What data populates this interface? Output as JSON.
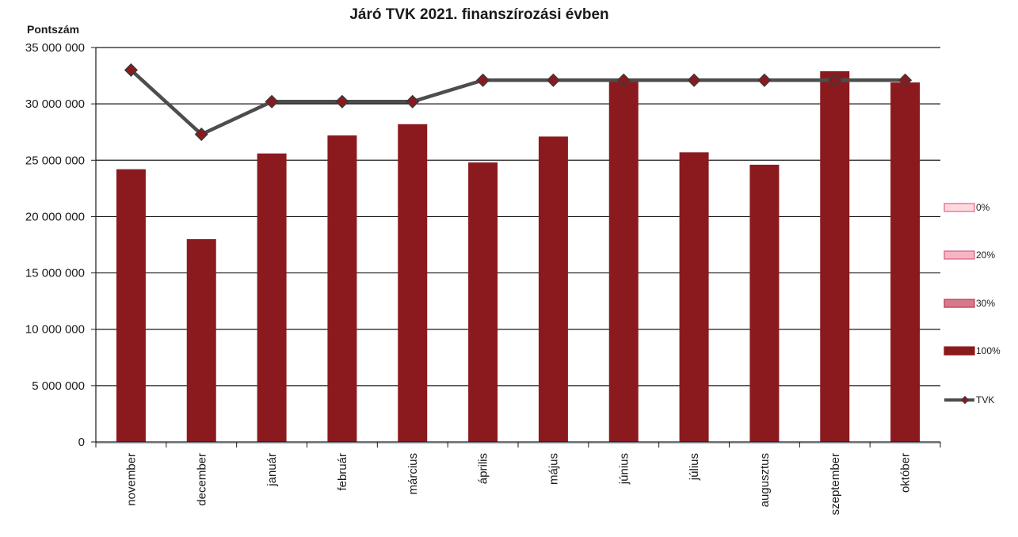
{
  "chart_data": {
    "type": "bar",
    "title": "Járó TVK 2021. finanszírozási évben",
    "ylabel": "Pontszám",
    "xlabel": "",
    "ylim": [
      0,
      35000000
    ],
    "y_ticks": [
      0,
      5000000,
      10000000,
      15000000,
      20000000,
      25000000,
      30000000,
      35000000
    ],
    "y_tick_labels": [
      "0",
      "5 000 000",
      "10 000 000",
      "15 000 000",
      "20 000 000",
      "25 000 000",
      "30 000 000",
      "35 000 000"
    ],
    "grid": true,
    "legend_position": "right",
    "categories": [
      "november",
      "december",
      "január",
      "február",
      "március",
      "április",
      "május",
      "június",
      "július",
      "augusztus",
      "szeptember",
      "október"
    ],
    "series": [
      {
        "name": "0%",
        "type": "bar",
        "color": "#ffd9e0",
        "border": "#e8607a",
        "values": [
          0,
          0,
          0,
          0,
          0,
          0,
          0,
          0,
          0,
          0,
          0,
          0
        ]
      },
      {
        "name": "20%",
        "type": "bar",
        "color": "#f4b6c2",
        "border": "#d9607a",
        "values": [
          0,
          0,
          0,
          0,
          0,
          0,
          0,
          0,
          0,
          0,
          0,
          0
        ]
      },
      {
        "name": "30%",
        "type": "bar",
        "color": "#d47a8c",
        "border": "#c0304c",
        "values": [
          0,
          0,
          0,
          0,
          0,
          0,
          0,
          0,
          0,
          0,
          0,
          0
        ]
      },
      {
        "name": "100%",
        "type": "bar",
        "color": "#8b1a1f",
        "border": "#8b1a1f",
        "values": [
          24200000,
          18000000,
          25600000,
          27200000,
          28200000,
          24800000,
          27100000,
          32100000,
          25700000,
          24600000,
          32900000,
          31900000
        ]
      },
      {
        "name": "TVK",
        "type": "line",
        "color": "#4d4d4d",
        "marker_color": "#8b1a1f",
        "values": [
          33000000,
          27300000,
          30200000,
          30200000,
          30200000,
          32100000,
          32100000,
          32100000,
          32100000,
          32100000,
          32100000,
          32100000
        ]
      }
    ]
  }
}
